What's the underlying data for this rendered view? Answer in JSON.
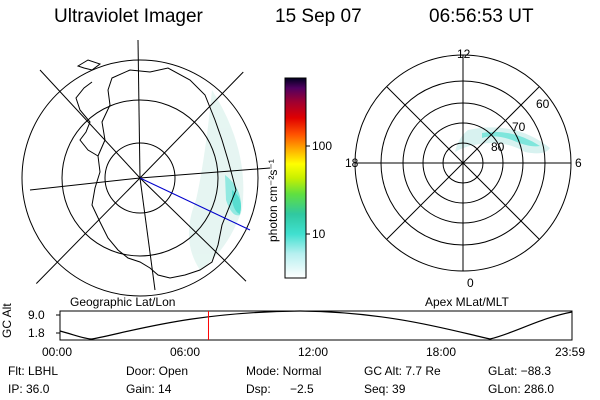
{
  "header": {
    "instrument": "Ultraviolet Imager",
    "date": "15 Sep 07",
    "time": "06:56:53 UT"
  },
  "colorbar": {
    "label": "photon cm⁻²s⁻¹",
    "ticks": [
      "100",
      "10"
    ]
  },
  "left_panel": {
    "caption": "Geographic Lat/Lon"
  },
  "right_panel": {
    "caption": "Apex MLat/MLT",
    "mlt_labels": {
      "top": "12",
      "left": "18",
      "right": "6",
      "bottom": "0"
    },
    "lat_labels": [
      "60",
      "70",
      "80"
    ]
  },
  "timeline": {
    "ylabel": "GC Alt",
    "yticks": [
      "9.0",
      "1.8"
    ],
    "xticks": [
      "00:00",
      "06:00",
      "12:00",
      "18:00",
      "23:59"
    ],
    "current_fraction": 0.29,
    "marker_color": "#ff0000"
  },
  "info": {
    "row1": [
      "Flt: LBHL",
      "Door: Open",
      "Mode: Normal",
      "GC Alt: 7.7 Re",
      "GLat: −88.3"
    ],
    "row2": [
      "IP: 36.0",
      "Gain: 14",
      "Dsp:",
      "−2.5",
      "Seq: 39",
      "GLon: 286.0"
    ]
  }
}
